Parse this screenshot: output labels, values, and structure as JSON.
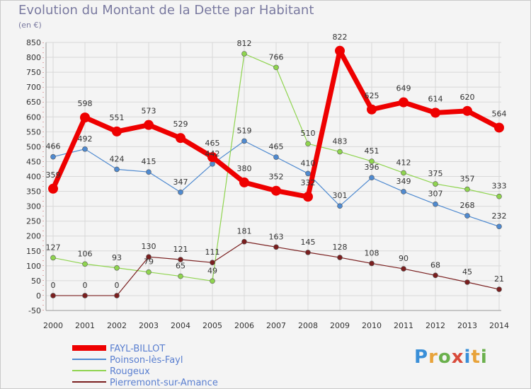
{
  "title": "Evolution du Montant de la Dette par Habitant",
  "subtitle": "(en €)",
  "logo": {
    "text": "Proxiti",
    "colors": [
      "#3a8fd8",
      "#e8a33a",
      "#6ab04c",
      "#d84a3a",
      "#3a8fd8",
      "#e8a33a",
      "#6ab04c"
    ]
  },
  "chart_data": {
    "type": "line",
    "x": [
      "2000",
      "2001",
      "2002",
      "2003",
      "2004",
      "2005",
      "2006",
      "2007",
      "2008",
      "2009",
      "2010",
      "2011",
      "2012",
      "2013",
      "2014"
    ],
    "ylim": [
      -50,
      850
    ],
    "yticks": [
      -50,
      0,
      50,
      100,
      150,
      200,
      250,
      300,
      350,
      400,
      450,
      500,
      550,
      600,
      650,
      700,
      750,
      800,
      850
    ],
    "grid": true,
    "legend_position": "bottom-left",
    "series": [
      {
        "name": "FAYL-BILLOT",
        "color": "#ee0000",
        "width": 7,
        "marker": 7,
        "values": [
          359,
          598,
          551,
          573,
          529,
          465,
          380,
          352,
          332,
          822,
          625,
          649,
          614,
          620,
          564
        ],
        "labels": [
          "359",
          "598",
          "551",
          "573",
          "529",
          "465",
          "380",
          "352",
          "332",
          "822",
          "625",
          "649",
          "614",
          "620",
          "564"
        ]
      },
      {
        "name": "Poinson-lès-Fayl",
        "color": "#4f8ad0",
        "width": 1.2,
        "marker": 3.5,
        "values": [
          466,
          492,
          424,
          415,
          347,
          442,
          519,
          465,
          410,
          301,
          396,
          349,
          307,
          268,
          232
        ],
        "labels": [
          "466",
          "492",
          "424",
          "415",
          "347",
          "442",
          "519",
          "465",
          "410",
          "301",
          "396",
          "349",
          "307",
          "268",
          "232"
        ]
      },
      {
        "name": "Rougeux",
        "color": "#8fd44f",
        "width": 1.2,
        "marker": 3.5,
        "values": [
          127,
          106,
          93,
          79,
          65,
          49,
          812,
          766,
          510,
          483,
          451,
          412,
          375,
          357,
          333
        ],
        "labels": [
          "127",
          "106",
          "93",
          "79",
          "65",
          "49",
          "812",
          "766",
          "510",
          "483",
          "451",
          "412",
          "375",
          "357",
          "333"
        ]
      },
      {
        "name": "Pierremont-sur-Amance",
        "color": "#7a1f1f",
        "width": 1.2,
        "marker": 3.5,
        "values": [
          0,
          0,
          0,
          130,
          121,
          111,
          181,
          163,
          145,
          128,
          108,
          90,
          68,
          45,
          21
        ],
        "labels": [
          "0",
          "0",
          "0",
          "130",
          "121",
          "111",
          "181",
          "163",
          "145",
          "128",
          "108",
          "90",
          "68",
          "45",
          "21"
        ]
      }
    ]
  }
}
